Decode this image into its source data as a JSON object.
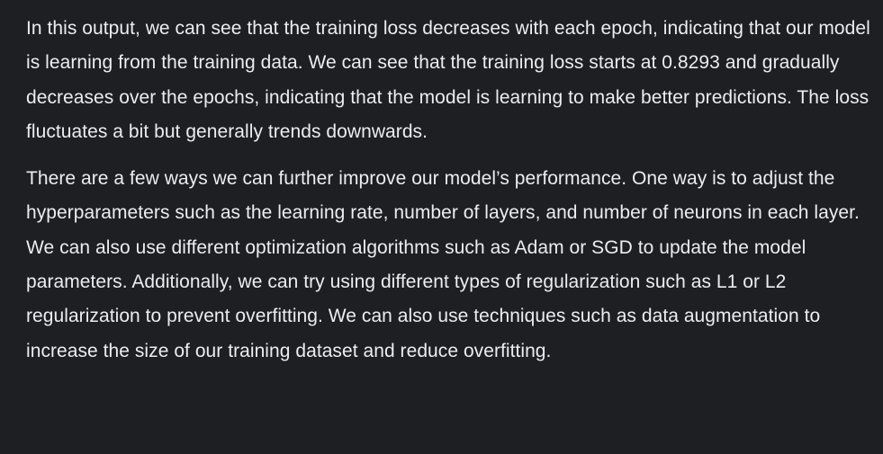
{
  "response": {
    "paragraphs": [
      "In this output, we can see that the training loss decreases with each epoch, indicating that our model is learning from the training data. We can see that the training loss starts at 0.8293 and gradually decreases over the epochs, indicating that the model is learning to make better predictions. The loss fluctuates a bit but generally trends downwards.",
      "There are a few ways we can further improve our model’s performance. One way is to adjust the hyperparameters such as the learning rate, number of layers, and number of neurons in each layer. We can also use different optimization algorithms such as Adam or SGD to update the model parameters. Additionally, we can try using different types of regularization such as L1 or L2 regularization to prevent overfitting. We can also use techniques such as data augmentation to increase the size of our training dataset and reduce overfitting."
    ]
  },
  "colors": {
    "background": "#1e1f22",
    "text": "#ececf1"
  }
}
